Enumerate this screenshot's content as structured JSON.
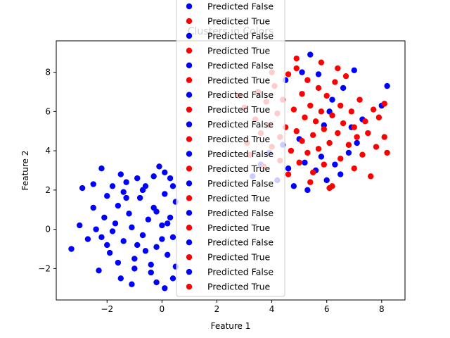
{
  "chart_data": {
    "type": "scatter",
    "title": "Clusters in Colors",
    "xlabel": "Feature 1",
    "ylabel": "Feature 2",
    "xlim": [
      -3.85,
      8.85
    ],
    "ylim": [
      -3.6,
      9.6
    ],
    "xticks": [
      -2,
      0,
      2,
      4,
      6,
      8
    ],
    "yticks": [
      -2,
      0,
      2,
      4,
      6,
      8
    ],
    "grid": false,
    "legend_placement": "upper center",
    "series": [
      {
        "name": "Predicted False",
        "color": "#0000ff",
        "cluster": 0
      },
      {
        "name": "Predicted True",
        "color": "#ff0000",
        "cluster": 1
      },
      {
        "name": "Predicted False",
        "color": "#0000ff",
        "cluster": 0
      },
      {
        "name": "Predicted True",
        "color": "#ff0000",
        "cluster": 1
      },
      {
        "name": "Predicted False",
        "color": "#0000ff",
        "cluster": 0
      },
      {
        "name": "Predicted True",
        "color": "#ff0000",
        "cluster": 1
      },
      {
        "name": "Predicted False",
        "color": "#0000ff",
        "cluster": 0
      },
      {
        "name": "Predicted True",
        "color": "#ff0000",
        "cluster": 1
      },
      {
        "name": "Predicted False",
        "color": "#0000ff",
        "cluster": 0
      },
      {
        "name": "Predicted True",
        "color": "#ff0000",
        "cluster": 1
      },
      {
        "name": "Predicted False",
        "color": "#0000ff",
        "cluster": 0
      },
      {
        "name": "Predicted True",
        "color": "#ff0000",
        "cluster": 1
      },
      {
        "name": "Predicted False",
        "color": "#0000ff",
        "cluster": 0
      },
      {
        "name": "Predicted True",
        "color": "#ff0000",
        "cluster": 1
      },
      {
        "name": "Predicted False",
        "color": "#0000ff",
        "cluster": 0
      },
      {
        "name": "Predicted True",
        "color": "#ff0000",
        "cluster": 1
      },
      {
        "name": "Predicted False",
        "color": "#0000ff",
        "cluster": 0
      },
      {
        "name": "Predicted True",
        "color": "#ff0000",
        "cluster": 1
      },
      {
        "name": "Predicted False",
        "color": "#0000ff",
        "cluster": 0
      },
      {
        "name": "Predicted True",
        "color": "#ff0000",
        "cluster": 1
      }
    ],
    "clusters": [
      {
        "color": "#0000ff",
        "points": [
          [
            -3.3,
            -1.0
          ],
          [
            -2.9,
            2.1
          ],
          [
            -2.5,
            2.3
          ],
          [
            -2.2,
            3.1
          ],
          [
            -3.0,
            0.2
          ],
          [
            -2.7,
            -0.5
          ],
          [
            -2.3,
            -2.1
          ],
          [
            -2.5,
            1.1
          ],
          [
            -2.0,
            1.7
          ],
          [
            -2.2,
            -0.4
          ],
          [
            -1.8,
            2.2
          ],
          [
            -1.5,
            2.8
          ],
          [
            -1.3,
            2.4
          ],
          [
            -1.1,
            -2.8
          ],
          [
            -1.5,
            -2.5
          ],
          [
            -0.9,
            2.6
          ],
          [
            -0.6,
            2.2
          ],
          [
            -0.3,
            2.7
          ],
          [
            -0.1,
            3.2
          ],
          [
            0.1,
            2.9
          ],
          [
            0.3,
            2.6
          ],
          [
            -0.2,
            -2.7
          ],
          [
            0.1,
            -3.0
          ],
          [
            0.4,
            -2.5
          ],
          [
            -1.9,
            -1.2
          ],
          [
            -1.7,
            0.3
          ],
          [
            -1.6,
            1.2
          ],
          [
            -1.4,
            -0.6
          ],
          [
            -1.2,
            0.8
          ],
          [
            -1.0,
            -1.5
          ],
          [
            -0.8,
            1.6
          ],
          [
            -0.7,
            -0.3
          ],
          [
            -0.5,
            0.5
          ],
          [
            -0.4,
            -1.8
          ],
          [
            -0.3,
            1.1
          ],
          [
            -0.2,
            -0.9
          ],
          [
            0.0,
            0.2
          ],
          [
            0.1,
            1.8
          ],
          [
            0.2,
            -1.3
          ],
          [
            0.3,
            0.6
          ],
          [
            0.4,
            -0.4
          ],
          [
            0.5,
            1.4
          ],
          [
            -0.9,
            -0.8
          ],
          [
            -1.1,
            0.1
          ],
          [
            -0.6,
            -1.1
          ],
          [
            -0.2,
            0.9
          ],
          [
            0.0,
            -0.5
          ],
          [
            0.2,
            0.3
          ],
          [
            -1.3,
            1.6
          ],
          [
            -0.7,
            2.0
          ],
          [
            -0.4,
            -2.2
          ],
          [
            -1.0,
            -2.0
          ],
          [
            0.4,
            2.2
          ],
          [
            0.5,
            -1.9
          ],
          [
            -1.6,
            -1.7
          ],
          [
            -2.1,
            0.6
          ],
          [
            -1.8,
            -0.1
          ],
          [
            -2.4,
            0.0
          ],
          [
            -2.0,
            -0.8
          ],
          [
            -1.4,
            1.9
          ],
          [
            3.3,
            2.7
          ],
          [
            3.6,
            3.3
          ],
          [
            3.9,
            3.9
          ],
          [
            4.2,
            2.5
          ],
          [
            4.4,
            4.3
          ],
          [
            4.6,
            3.1
          ],
          [
            4.8,
            2.2
          ],
          [
            5.0,
            4.6
          ],
          [
            5.2,
            3.4
          ],
          [
            5.3,
            2.0
          ],
          [
            5.4,
            8.9
          ],
          [
            5.6,
            3.0
          ],
          [
            5.8,
            3.7
          ],
          [
            6.0,
            2.5
          ],
          [
            6.2,
            6.6
          ],
          [
            6.3,
            3.3
          ],
          [
            6.5,
            2.8
          ],
          [
            6.6,
            7.2
          ],
          [
            6.8,
            3.9
          ],
          [
            6.9,
            5.2
          ],
          [
            7.0,
            8.1
          ],
          [
            7.1,
            4.4
          ],
          [
            7.3,
            5.6
          ],
          [
            8.2,
            7.3
          ],
          [
            8.0,
            6.3
          ],
          [
            5.7,
            7.9
          ],
          [
            5.1,
            8.0
          ],
          [
            4.5,
            7.6
          ],
          [
            6.1,
            6.0
          ],
          [
            5.9,
            5.3
          ]
        ]
      },
      {
        "color": "#ff0000",
        "points": [
          [
            2.8,
            6.8
          ],
          [
            3.0,
            6.2
          ],
          [
            3.1,
            4.4
          ],
          [
            3.2,
            3.8
          ],
          [
            3.4,
            5.6
          ],
          [
            3.5,
            7.0
          ],
          [
            3.6,
            4.9
          ],
          [
            3.7,
            3.2
          ],
          [
            3.8,
            6.5
          ],
          [
            3.9,
            5.3
          ],
          [
            4.0,
            4.2
          ],
          [
            4.1,
            7.3
          ],
          [
            4.2,
            5.9
          ],
          [
            4.3,
            4.7
          ],
          [
            4.3,
            3.5
          ],
          [
            4.4,
            6.6
          ],
          [
            4.5,
            5.2
          ],
          [
            4.6,
            2.8
          ],
          [
            4.6,
            7.9
          ],
          [
            4.7,
            4.0
          ],
          [
            4.8,
            6.1
          ],
          [
            4.9,
            8.2
          ],
          [
            4.9,
            5.0
          ],
          [
            5.0,
            3.4
          ],
          [
            5.1,
            6.9
          ],
          [
            5.1,
            4.5
          ],
          [
            5.2,
            5.7
          ],
          [
            5.3,
            7.6
          ],
          [
            5.3,
            3.9
          ],
          [
            5.4,
            6.3
          ],
          [
            5.5,
            4.8
          ],
          [
            5.5,
            2.9
          ],
          [
            5.6,
            5.5
          ],
          [
            5.7,
            7.2
          ],
          [
            5.7,
            4.1
          ],
          [
            5.8,
            6.0
          ],
          [
            5.9,
            3.3
          ],
          [
            5.9,
            5.1
          ],
          [
            6.0,
            6.8
          ],
          [
            6.1,
            4.4
          ],
          [
            6.2,
            5.8
          ],
          [
            6.2,
            2.2
          ],
          [
            6.3,
            7.5
          ],
          [
            6.4,
            4.9
          ],
          [
            6.5,
            6.3
          ],
          [
            6.5,
            3.6
          ],
          [
            6.6,
            5.4
          ],
          [
            6.7,
            7.8
          ],
          [
            6.8,
            4.3
          ],
          [
            6.9,
            6.0
          ],
          [
            7.0,
            3.1
          ],
          [
            7.0,
            5.2
          ],
          [
            7.1,
            4.7
          ],
          [
            7.2,
            6.6
          ],
          [
            7.3,
            3.8
          ],
          [
            7.4,
            5.5
          ],
          [
            7.5,
            4.9
          ],
          [
            7.6,
            2.7
          ],
          [
            7.7,
            6.1
          ],
          [
            7.8,
            4.2
          ],
          [
            7.9,
            5.7
          ],
          [
            8.1,
            4.7
          ],
          [
            8.1,
            6.4
          ],
          [
            8.2,
            3.9
          ],
          [
            5.8,
            8.5
          ],
          [
            4.9,
            8.7
          ],
          [
            6.4,
            8.2
          ],
          [
            4.0,
            8.0
          ],
          [
            6.1,
            2.1
          ],
          [
            5.4,
            2.4
          ]
        ]
      }
    ]
  }
}
